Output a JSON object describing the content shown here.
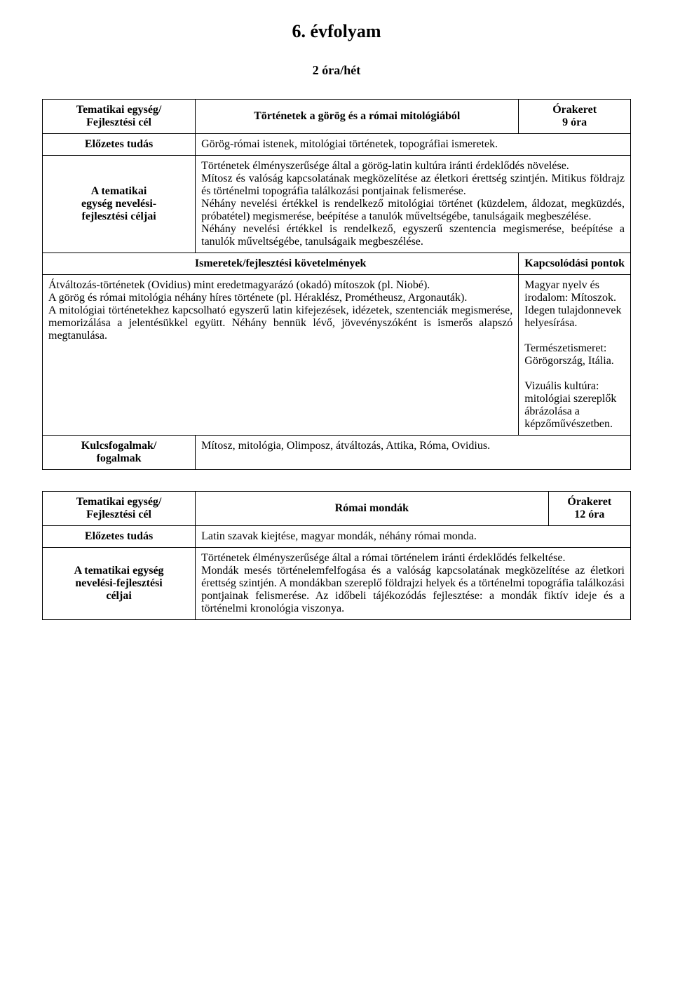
{
  "title": "6. évfolyam",
  "subtitle": "2 óra/hét",
  "table1": {
    "r1c1_l1": "Tematikai egység/",
    "r1c1_l2": "Fejlesztési cél",
    "r1c2": "Történetek a görög és a római mitológiából",
    "r1c3_l1": "Órakeret",
    "r1c3_l2": "9 óra",
    "r2c1": "Előzetes tudás",
    "r2c2": "Görög-római istenek, mitológiai történetek, topográfiai ismeretek.",
    "r3c1_l1": "A tematikai",
    "r3c1_l2": "egység nevelési-",
    "r3c1_l3": "fejlesztési céljai",
    "r3c2": "Történetek élményszerűsége által a görög-latin kultúra iránti érdeklődés növelése.\nMítosz és valóság kapcsolatának megközelítése az életkori érettség szintjén. Mitikus földrajz és történelmi topográfia találkozási pontjainak felismerése.\nNéhány nevelési értékkel is rendelkező mitológiai történet (küzdelem, áldozat, megküzdés, próbatétel) megismerése, beépítése a tanulók műveltségébe, tanulságaik megbeszélése.\nNéhány nevelési értékkel is rendelkező, egyszerű szentencia megismerése, beépítése a tanulók műveltségébe, tanulságaik megbeszélése.",
    "r4c1": "Ismeretek/fejlesztési követelmények",
    "r4c2": "Kapcsolódási pontok",
    "r5c1": "Átváltozás-történetek (Ovidius) mint eredetmagyarázó (okadó) mítoszok (pl. Niobé).\nA görög és római mitológia néhány híres története (pl. Héraklész, Prométheusz, Argonauták).\nA mitológiai történetekhez kapcsolható egyszerű latin kifejezések, idézetek, szentenciák megismerése, memorizálása a jelentésükkel együtt. Néhány bennük lévő, jövevényszóként is ismerős alapszó megtanulása.",
    "r5c2": "Magyar nyelv és irodalom: Mítoszok. Idegen tulajdonnevek helyesírása.\n\nTermészetismeret: Görögország, Itália.\n\nVizuális kultúra: mitológiai szereplők ábrázolása a képzőművészetben.",
    "r6c1_l1": "Kulcsfogalmak/",
    "r6c1_l2": "fogalmak",
    "r6c2": "Mítosz, mitológia, Olimposz, átváltozás, Attika, Róma, Ovidius."
  },
  "table2": {
    "r1c1_l1": "Tematikai egység/",
    "r1c1_l2": "Fejlesztési cél",
    "r1c2": "Római mondák",
    "r1c3_l1": "Órakeret",
    "r1c3_l2": "12 óra",
    "r2c1": "Előzetes tudás",
    "r2c2": "Latin szavak kiejtése, magyar mondák, néhány római monda.",
    "r3c1_l1": "A tematikai egység",
    "r3c1_l2": "nevelési-fejlesztési",
    "r3c1_l3": "céljai",
    "r3c2": "Történetek élményszerűsége által a római történelem iránti érdeklődés felkeltése.\nMondák mesés történelemfelfogása és a valóság kapcsolatának megközelítése az életkori érettség szintjén. A mondákban szereplő földrajzi helyek és a történelmi topográfia találkozási pontjainak felismerése. Az időbeli tájékozódás fejlesztése: a mondák fiktív ideje és a történelmi kronológia viszonya."
  }
}
